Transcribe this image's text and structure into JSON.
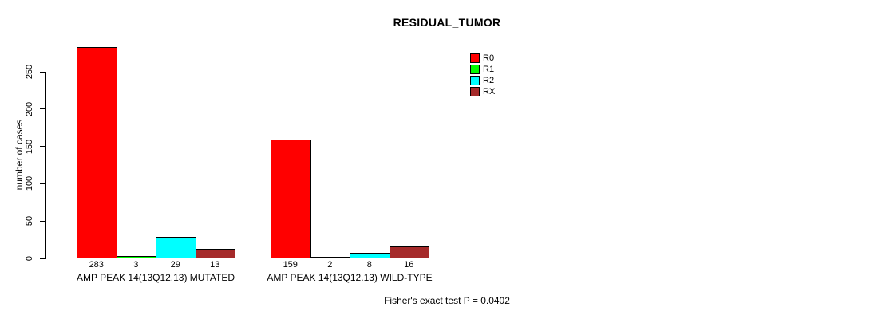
{
  "chart_data": {
    "type": "bar",
    "title": "RESIDUAL_TUMOR",
    "ylabel": "number of cases",
    "yticks": [
      0,
      50,
      100,
      150,
      200,
      250
    ],
    "ylim": [
      0,
      290
    ],
    "grid": false,
    "legend_position": "top-right inside plot, no box",
    "categories": [
      "AMP PEAK 14(13Q12.13) MUTATED",
      "AMP PEAK 14(13Q12.13) WILD-TYPE"
    ],
    "series": [
      {
        "name": "R0",
        "color": "#FF0000",
        "values": [
          283,
          159
        ]
      },
      {
        "name": "R1",
        "color": "#00FF00",
        "values": [
          3,
          2
        ]
      },
      {
        "name": "R2",
        "color": "#00FFFF",
        "values": [
          29,
          8
        ]
      },
      {
        "name": "RX",
        "color": "#A52A2A",
        "values": [
          13,
          16
        ]
      }
    ],
    "bar_value_labels_shown": true,
    "footnote": "Fisher's exact test P = 0.0402"
  }
}
